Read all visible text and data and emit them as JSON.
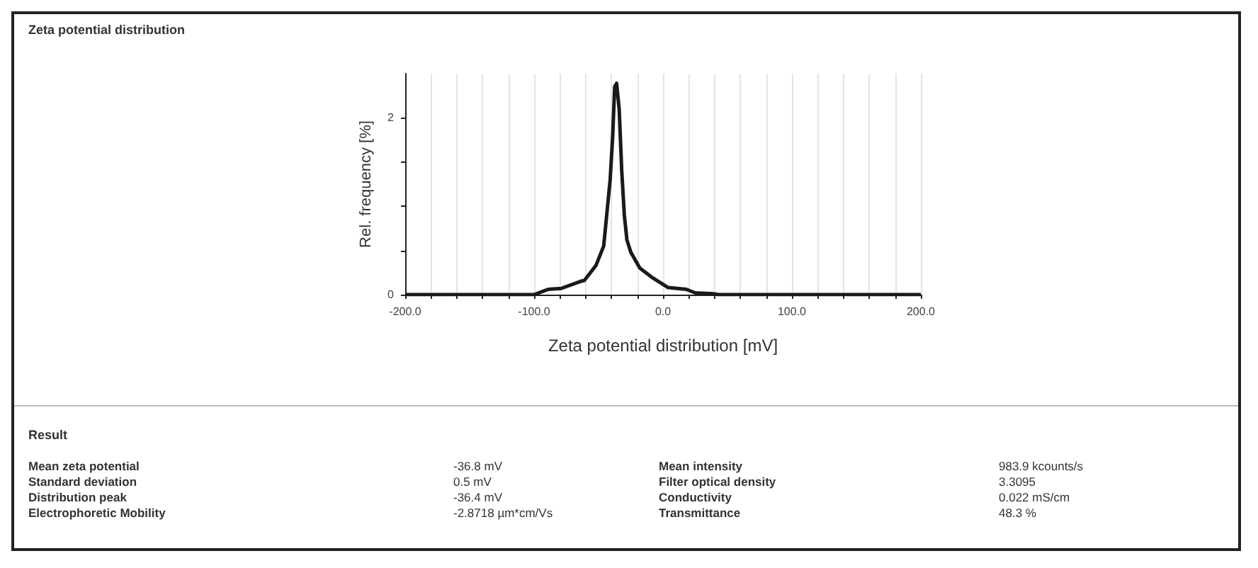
{
  "chart_data": {
    "type": "line",
    "title": "Zeta potential distribution",
    "xlabel": "Zeta potential distribution [mV]",
    "ylabel": "Rel. frequency [%]",
    "x": [
      -200,
      -100,
      -89,
      -79,
      -64,
      -61,
      -52,
      -46,
      -44,
      -41,
      -39,
      -37.5,
      -36,
      -34,
      -32,
      -30,
      -28,
      -25,
      -18,
      -9,
      4,
      18,
      25,
      39,
      43,
      200
    ],
    "series": [
      {
        "color": "#1a1a1a",
        "values": [
          0,
          0,
          0.06,
          0.07,
          0.15,
          0.16,
          0.33,
          0.55,
          0.85,
          1.3,
          1.8,
          2.35,
          2.39,
          2.1,
          1.4,
          0.9,
          0.62,
          0.48,
          0.3,
          0.2,
          0.08,
          0.06,
          0.02,
          0.01,
          0,
          0
        ]
      }
    ],
    "xlim": [
      -200,
      200
    ],
    "xticks": [
      {
        "value": -200,
        "label": "-200.0"
      },
      {
        "value": -180,
        "label": null
      },
      {
        "value": -160,
        "label": null
      },
      {
        "value": -140,
        "label": null
      },
      {
        "value": -120,
        "label": null
      },
      {
        "value": -100,
        "label": "-100.0"
      },
      {
        "value": -80,
        "label": null
      },
      {
        "value": -60,
        "label": null
      },
      {
        "value": -40,
        "label": null
      },
      {
        "value": -20,
        "label": null
      },
      {
        "value": 0,
        "label": "0.0"
      },
      {
        "value": 20,
        "label": null
      },
      {
        "value": 40,
        "label": null
      },
      {
        "value": 60,
        "label": null
      },
      {
        "value": 80,
        "label": null
      },
      {
        "value": 100,
        "label": "100.0"
      },
      {
        "value": 120,
        "label": null
      },
      {
        "value": 140,
        "label": null
      },
      {
        "value": 160,
        "label": null
      },
      {
        "value": 180,
        "label": null
      },
      {
        "value": 200,
        "label": "200.0"
      }
    ],
    "ylim": [
      0,
      2.5
    ],
    "yticks": [
      0,
      {
        "value": 0.5,
        "label": null
      },
      {
        "value": 1,
        "label": null
      },
      {
        "value": 1.5,
        "label": null
      },
      2
    ],
    "grid": "x",
    "marker": "none",
    "line_style": "solid",
    "annotations": [
      "Result",
      "Mean zeta potential",
      "-36.8 mV",
      "Mean intensity",
      "983.9 kcounts/s",
      "Standard deviation",
      "0.5 mV",
      "Filter optical density",
      "3.3095",
      "Distribution peak",
      "-36.4 mV",
      "Conductivity",
      "0.022 mS/cm",
      "Electrophoretic Mobility",
      "-2.8718 µm*cm/Vs",
      "Transmittance",
      "48.3 %"
    ]
  }
}
